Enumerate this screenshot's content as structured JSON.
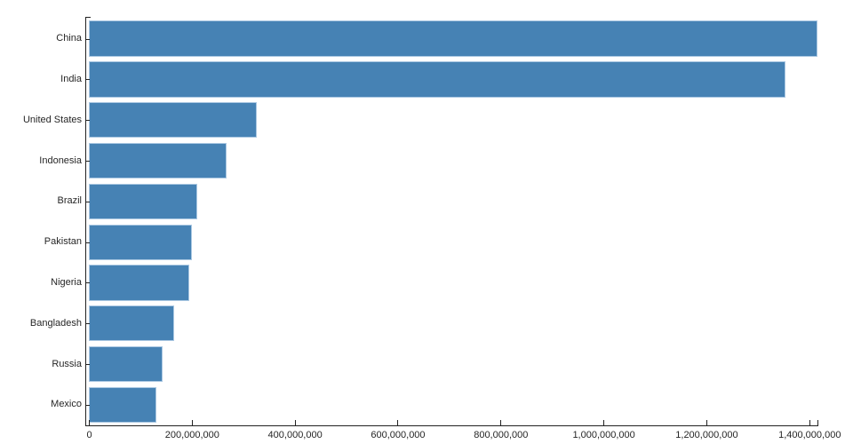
{
  "chart_data": {
    "type": "bar",
    "orientation": "horizontal",
    "title": "",
    "xlabel": "",
    "ylabel": "",
    "categories": [
      "China",
      "India",
      "United States",
      "Indonesia",
      "Brazil",
      "Pakistan",
      "Nigeria",
      "Bangladesh",
      "Russia",
      "Mexico"
    ],
    "values": [
      1415045928,
      1354051854,
      326766748,
      266794980,
      210867954,
      200813818,
      195875237,
      166368149,
      143964709,
      130759074
    ],
    "xlim": [
      0,
      1415045928
    ],
    "x_ticks": [
      {
        "value": 0,
        "label": "0"
      },
      {
        "value": 200000000,
        "label": "200,000,000"
      },
      {
        "value": 400000000,
        "label": "400,000,000"
      },
      {
        "value": 600000000,
        "label": "600,000,000"
      },
      {
        "value": 800000000,
        "label": "800,000,000"
      },
      {
        "value": 1000000000,
        "label": "1,000,000,000"
      },
      {
        "value": 1200000000,
        "label": "1,200,000,000"
      },
      {
        "value": 1400000000,
        "label": "1,400,000,000"
      }
    ],
    "grid": "off",
    "legend": "none",
    "tick_direction": "in",
    "colors": {
      "bar_fill": "#4682b4",
      "bar_edge": "#abc8e2",
      "axis": "#222222",
      "text": "#262626"
    }
  }
}
